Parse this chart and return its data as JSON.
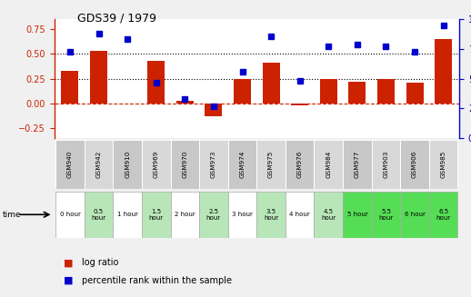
{
  "title": "GDS39 / 1979",
  "gsm_labels": [
    "GSM940",
    "GSM942",
    "GSM910",
    "GSM969",
    "GSM970",
    "GSM973",
    "GSM974",
    "GSM975",
    "GSM976",
    "GSM984",
    "GSM977",
    "GSM903",
    "GSM906",
    "GSM985"
  ],
  "time_labels": [
    "0 hour",
    "0.5\nhour",
    "1 hour",
    "1.5\nhour",
    "2 hour",
    "2.5\nhour",
    "3 hour",
    "3.5\nhour",
    "4 hour",
    "4.5\nhour",
    "5 hour",
    "5.5\nhour",
    "6 hour",
    "6.5\nhour"
  ],
  "time_colors": [
    "#ffffff",
    "#b8e6b8",
    "#ffffff",
    "#b8e6b8",
    "#ffffff",
    "#b8e6b8",
    "#ffffff",
    "#b8e6b8",
    "#ffffff",
    "#b8e6b8",
    "#55dd55",
    "#55dd55",
    "#55dd55",
    "#55dd55"
  ],
  "gsm_colors": [
    "#c8c8c8",
    "#d8d8d8",
    "#c8c8c8",
    "#d8d8d8",
    "#c8c8c8",
    "#d8d8d8",
    "#c8c8c8",
    "#d8d8d8",
    "#c8c8c8",
    "#d8d8d8",
    "#c8c8c8",
    "#d8d8d8",
    "#c8c8c8",
    "#d8d8d8"
  ],
  "log_ratio": [
    0.33,
    0.53,
    0.0,
    0.43,
    0.03,
    -0.13,
    0.25,
    0.41,
    -0.02,
    0.25,
    0.22,
    0.25,
    0.21,
    0.65
  ],
  "percentile": [
    73,
    88,
    83,
    47,
    33,
    27,
    56,
    86,
    48,
    77,
    79,
    77,
    73,
    95
  ],
  "bar_color": "#cc2200",
  "dot_color": "#0000cc",
  "ylim_left": [
    -0.35,
    0.85
  ],
  "ylim_right": [
    0,
    100
  ],
  "yticks_left": [
    -0.25,
    0.0,
    0.25,
    0.5,
    0.75
  ],
  "yticks_right": [
    0,
    25,
    50,
    75,
    100
  ],
  "hlines": [
    0.25,
    0.5
  ],
  "hline_zero_color": "#cc2200",
  "bg_color": "#f0f0f0",
  "plot_bg": "#ffffff",
  "legend_log_ratio": "log ratio",
  "legend_percentile": "percentile rank within the sample"
}
